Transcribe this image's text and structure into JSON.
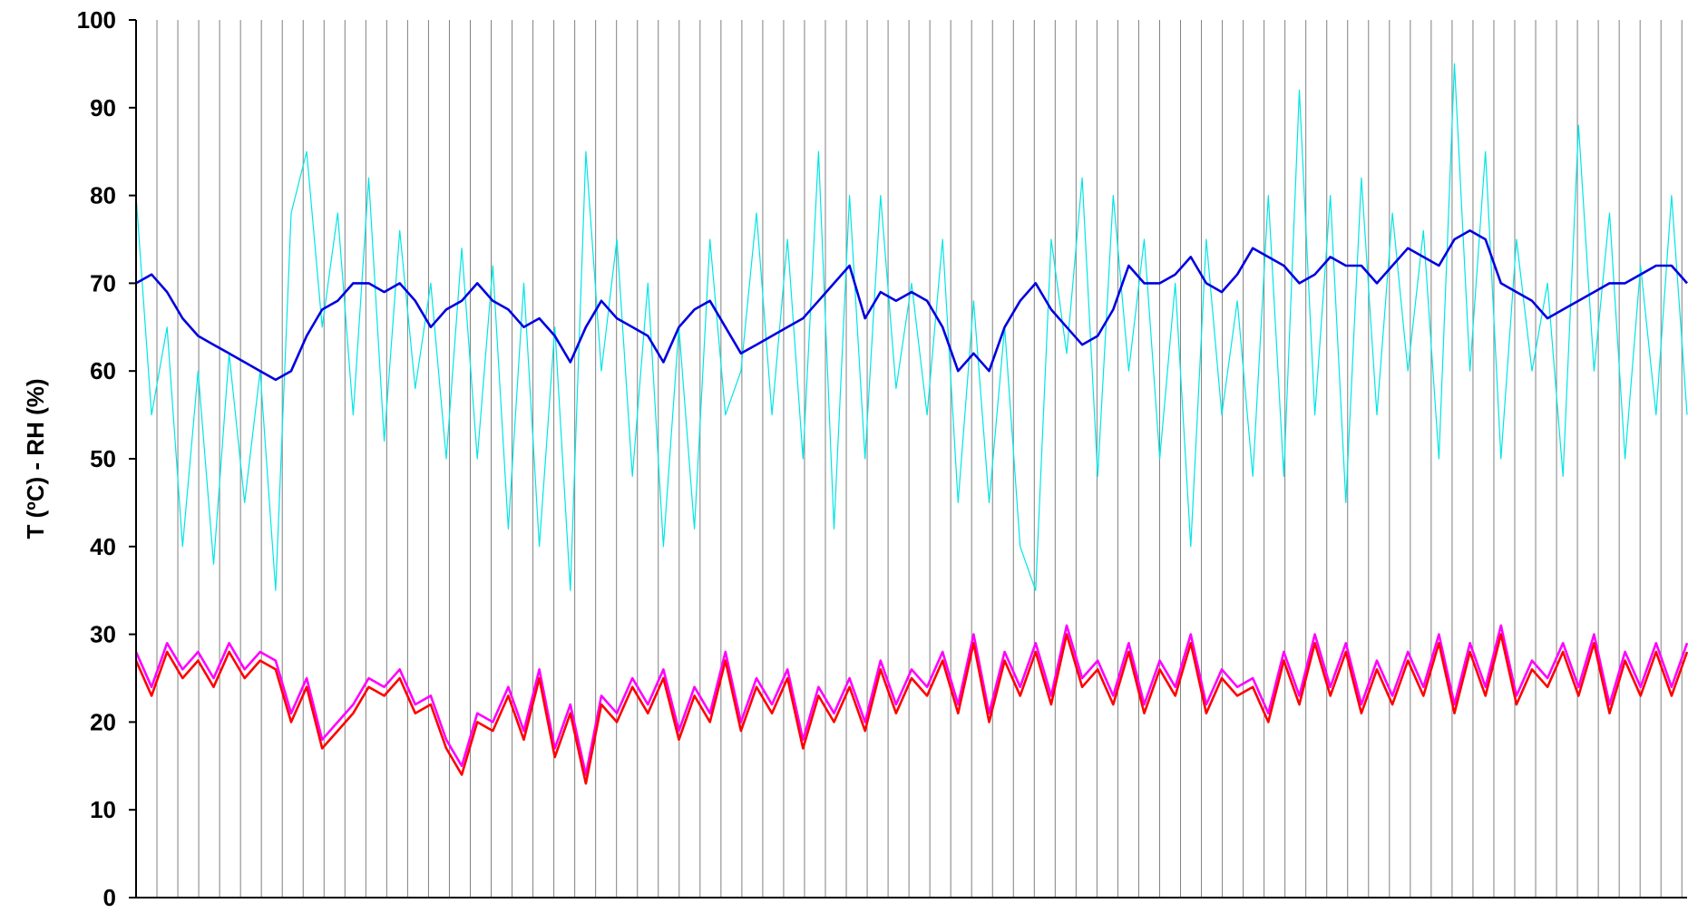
{
  "chart_data": {
    "type": "line",
    "title": "",
    "xlabel": "",
    "ylabel": "T (ºC) - RH (%)",
    "ylim": [
      0,
      100
    ],
    "yticks": [
      0,
      10,
      20,
      30,
      40,
      50,
      60,
      70,
      80,
      90,
      100
    ],
    "xlim": [
      0,
      1
    ],
    "vertical_gridlines": 74,
    "grid": "vertical",
    "legend": "none",
    "series": [
      {
        "color": "#00e5e5",
        "stroke": "thin",
        "x": [
          0.0,
          0.01,
          0.02,
          0.03,
          0.04,
          0.05,
          0.06,
          0.07,
          0.08,
          0.09,
          0.1,
          0.11,
          0.12,
          0.13,
          0.14,
          0.15,
          0.16,
          0.17,
          0.18,
          0.19,
          0.2,
          0.21,
          0.22,
          0.23,
          0.24,
          0.25,
          0.26,
          0.27,
          0.28,
          0.29,
          0.3,
          0.31,
          0.32,
          0.33,
          0.34,
          0.35,
          0.36,
          0.37,
          0.38,
          0.39,
          0.4,
          0.41,
          0.42,
          0.43,
          0.44,
          0.45,
          0.46,
          0.47,
          0.48,
          0.49,
          0.5,
          0.51,
          0.52,
          0.53,
          0.54,
          0.55,
          0.56,
          0.57,
          0.58,
          0.59,
          0.6,
          0.61,
          0.62,
          0.63,
          0.64,
          0.65,
          0.66,
          0.67,
          0.68,
          0.69,
          0.7,
          0.71,
          0.72,
          0.73,
          0.74,
          0.75,
          0.76,
          0.77,
          0.78,
          0.79,
          0.8,
          0.81,
          0.82,
          0.83,
          0.84,
          0.85,
          0.86,
          0.87,
          0.88,
          0.89,
          0.9,
          0.91,
          0.92,
          0.93,
          0.94,
          0.95,
          0.96,
          0.97,
          0.98,
          0.99,
          1.0
        ],
        "values": [
          80,
          55,
          65,
          40,
          60,
          38,
          62,
          45,
          60,
          35,
          78,
          85,
          65,
          78,
          55,
          82,
          52,
          76,
          58,
          70,
          50,
          74,
          50,
          72,
          42,
          70,
          40,
          65,
          35,
          85,
          60,
          75,
          48,
          70,
          40,
          65,
          42,
          75,
          55,
          60,
          78,
          55,
          75,
          50,
          85,
          42,
          80,
          50,
          80,
          58,
          70,
          55,
          75,
          45,
          68,
          45,
          65,
          40,
          35,
          75,
          62,
          82,
          48,
          80,
          60,
          75,
          50,
          70,
          40,
          75,
          55,
          68,
          48,
          80,
          48,
          92,
          55,
          80,
          45,
          82,
          55,
          78,
          60,
          76,
          50,
          95,
          60,
          85,
          50,
          75,
          60,
          70,
          48,
          88,
          60,
          78,
          50,
          72,
          55,
          80,
          55
        ]
      },
      {
        "color": "#0000e0",
        "stroke": "thick",
        "x": [
          0.0,
          0.01,
          0.02,
          0.03,
          0.04,
          0.05,
          0.06,
          0.07,
          0.08,
          0.09,
          0.1,
          0.11,
          0.12,
          0.13,
          0.14,
          0.15,
          0.16,
          0.17,
          0.18,
          0.19,
          0.2,
          0.21,
          0.22,
          0.23,
          0.24,
          0.25,
          0.26,
          0.27,
          0.28,
          0.29,
          0.3,
          0.31,
          0.32,
          0.33,
          0.34,
          0.35,
          0.36,
          0.37,
          0.38,
          0.39,
          0.4,
          0.41,
          0.42,
          0.43,
          0.44,
          0.45,
          0.46,
          0.47,
          0.48,
          0.49,
          0.5,
          0.51,
          0.52,
          0.53,
          0.54,
          0.55,
          0.56,
          0.57,
          0.58,
          0.59,
          0.6,
          0.61,
          0.62,
          0.63,
          0.64,
          0.65,
          0.66,
          0.67,
          0.68,
          0.69,
          0.7,
          0.71,
          0.72,
          0.73,
          0.74,
          0.75,
          0.76,
          0.77,
          0.78,
          0.79,
          0.8,
          0.81,
          0.82,
          0.83,
          0.84,
          0.85,
          0.86,
          0.87,
          0.88,
          0.89,
          0.9,
          0.91,
          0.92,
          0.93,
          0.94,
          0.95,
          0.96,
          0.97,
          0.98,
          0.99,
          1.0
        ],
        "values": [
          70,
          71,
          69,
          66,
          64,
          63,
          62,
          61,
          60,
          59,
          60,
          64,
          67,
          68,
          70,
          70,
          69,
          70,
          68,
          65,
          67,
          68,
          70,
          68,
          67,
          65,
          66,
          64,
          61,
          65,
          68,
          66,
          65,
          64,
          61,
          65,
          67,
          68,
          65,
          62,
          63,
          64,
          65,
          66,
          68,
          70,
          72,
          66,
          69,
          68,
          69,
          68,
          65,
          60,
          62,
          60,
          65,
          68,
          70,
          67,
          65,
          63,
          64,
          67,
          72,
          70,
          70,
          71,
          73,
          70,
          69,
          71,
          74,
          73,
          72,
          70,
          71,
          73,
          72,
          72,
          70,
          72,
          74,
          73,
          72,
          75,
          76,
          75,
          70,
          69,
          68,
          66,
          67,
          68,
          69,
          70,
          70,
          71,
          72,
          72,
          70
        ]
      },
      {
        "color": "#ff00ff",
        "stroke": "thick",
        "x": [
          0.0,
          0.01,
          0.02,
          0.03,
          0.04,
          0.05,
          0.06,
          0.07,
          0.08,
          0.09,
          0.1,
          0.11,
          0.12,
          0.13,
          0.14,
          0.15,
          0.16,
          0.17,
          0.18,
          0.19,
          0.2,
          0.21,
          0.22,
          0.23,
          0.24,
          0.25,
          0.26,
          0.27,
          0.28,
          0.29,
          0.3,
          0.31,
          0.32,
          0.33,
          0.34,
          0.35,
          0.36,
          0.37,
          0.38,
          0.39,
          0.4,
          0.41,
          0.42,
          0.43,
          0.44,
          0.45,
          0.46,
          0.47,
          0.48,
          0.49,
          0.5,
          0.51,
          0.52,
          0.53,
          0.54,
          0.55,
          0.56,
          0.57,
          0.58,
          0.59,
          0.6,
          0.61,
          0.62,
          0.63,
          0.64,
          0.65,
          0.66,
          0.67,
          0.68,
          0.69,
          0.7,
          0.71,
          0.72,
          0.73,
          0.74,
          0.75,
          0.76,
          0.77,
          0.78,
          0.79,
          0.8,
          0.81,
          0.82,
          0.83,
          0.84,
          0.85,
          0.86,
          0.87,
          0.88,
          0.89,
          0.9,
          0.91,
          0.92,
          0.93,
          0.94,
          0.95,
          0.96,
          0.97,
          0.98,
          0.99,
          1.0
        ],
        "values": [
          28,
          24,
          29,
          26,
          28,
          25,
          29,
          26,
          28,
          27,
          21,
          25,
          18,
          20,
          22,
          25,
          24,
          26,
          22,
          23,
          18,
          15,
          21,
          20,
          24,
          19,
          26,
          17,
          22,
          14,
          23,
          21,
          25,
          22,
          26,
          19,
          24,
          21,
          28,
          20,
          25,
          22,
          26,
          18,
          24,
          21,
          25,
          20,
          27,
          22,
          26,
          24,
          28,
          22,
          30,
          21,
          28,
          24,
          29,
          23,
          31,
          25,
          27,
          23,
          29,
          22,
          27,
          24,
          30,
          22,
          26,
          24,
          25,
          21,
          28,
          23,
          30,
          24,
          29,
          22,
          27,
          23,
          28,
          24,
          30,
          22,
          29,
          24,
          31,
          23,
          27,
          25,
          29,
          24,
          30,
          22,
          28,
          24,
          29,
          24,
          29
        ]
      },
      {
        "color": "#ff0000",
        "stroke": "thick",
        "x": [
          0.0,
          0.01,
          0.02,
          0.03,
          0.04,
          0.05,
          0.06,
          0.07,
          0.08,
          0.09,
          0.1,
          0.11,
          0.12,
          0.13,
          0.14,
          0.15,
          0.16,
          0.17,
          0.18,
          0.19,
          0.2,
          0.21,
          0.22,
          0.23,
          0.24,
          0.25,
          0.26,
          0.27,
          0.28,
          0.29,
          0.3,
          0.31,
          0.32,
          0.33,
          0.34,
          0.35,
          0.36,
          0.37,
          0.38,
          0.39,
          0.4,
          0.41,
          0.42,
          0.43,
          0.44,
          0.45,
          0.46,
          0.47,
          0.48,
          0.49,
          0.5,
          0.51,
          0.52,
          0.53,
          0.54,
          0.55,
          0.56,
          0.57,
          0.58,
          0.59,
          0.6,
          0.61,
          0.62,
          0.63,
          0.64,
          0.65,
          0.66,
          0.67,
          0.68,
          0.69,
          0.7,
          0.71,
          0.72,
          0.73,
          0.74,
          0.75,
          0.76,
          0.77,
          0.78,
          0.79,
          0.8,
          0.81,
          0.82,
          0.83,
          0.84,
          0.85,
          0.86,
          0.87,
          0.88,
          0.89,
          0.9,
          0.91,
          0.92,
          0.93,
          0.94,
          0.95,
          0.96,
          0.97,
          0.98,
          0.99,
          1.0
        ],
        "values": [
          27,
          23,
          28,
          25,
          27,
          24,
          28,
          25,
          27,
          26,
          20,
          24,
          17,
          19,
          21,
          24,
          23,
          25,
          21,
          22,
          17,
          14,
          20,
          19,
          23,
          18,
          25,
          16,
          21,
          13,
          22,
          20,
          24,
          21,
          25,
          18,
          23,
          20,
          27,
          19,
          24,
          21,
          25,
          17,
          23,
          20,
          24,
          19,
          26,
          21,
          25,
          23,
          27,
          21,
          29,
          20,
          27,
          23,
          28,
          22,
          30,
          24,
          26,
          22,
          28,
          21,
          26,
          23,
          29,
          21,
          25,
          23,
          24,
          20,
          27,
          22,
          29,
          23,
          28,
          21,
          26,
          22,
          27,
          23,
          29,
          21,
          28,
          23,
          30,
          22,
          26,
          24,
          28,
          23,
          29,
          21,
          27,
          23,
          28,
          23,
          28
        ]
      }
    ]
  }
}
